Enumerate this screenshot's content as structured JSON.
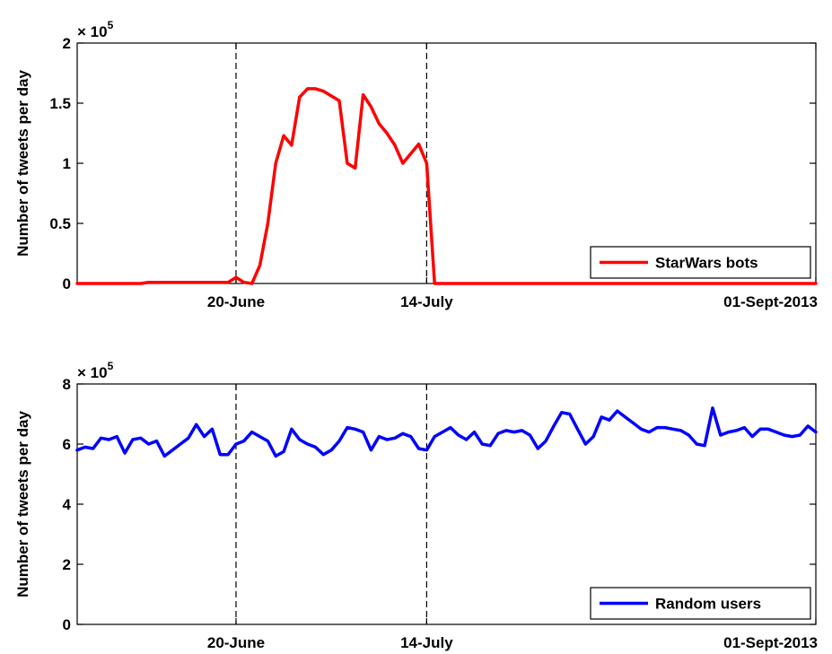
{
  "colors": {
    "series1": "#ff0000",
    "series2": "#0000ff",
    "axis": "#000000"
  },
  "chart_data": [
    {
      "type": "line",
      "ylabel": "Number of tweets per day",
      "y_exponent": {
        "base": "× 10",
        "power": "5"
      },
      "ylim": [
        0,
        200000
      ],
      "yticks": [
        {
          "value": 0,
          "label": "0"
        },
        {
          "value": 50000,
          "label": "0.5"
        },
        {
          "value": 100000,
          "label": "1"
        },
        {
          "value": 150000,
          "label": "1.5"
        },
        {
          "value": 200000,
          "label": "2"
        }
      ],
      "xlim": [
        "2013-05-31",
        "2013-09-01"
      ],
      "xticks": [
        {
          "date": "2013-06-20",
          "label": "20-June"
        },
        {
          "date": "2013-07-14",
          "label": "14-July"
        },
        {
          "date": "2013-09-01",
          "label": "01-Sept-2013"
        }
      ],
      "vlines": [
        "2013-06-20",
        "2013-07-14"
      ],
      "legend": {
        "label": "StarWars bots",
        "position": "bottom-right"
      },
      "series": [
        {
          "name": "StarWars bots",
          "color": "#ff0000",
          "points": [
            [
              "2013-05-31",
              0
            ],
            [
              "2013-06-08",
              0
            ],
            [
              "2013-06-09",
              1000
            ],
            [
              "2013-06-19",
              1000
            ],
            [
              "2013-06-20",
              5000
            ],
            [
              "2013-06-21",
              1000
            ],
            [
              "2013-06-22",
              0
            ],
            [
              "2013-06-23",
              15000
            ],
            [
              "2013-06-24",
              50000
            ],
            [
              "2013-06-25",
              100000
            ],
            [
              "2013-06-26",
              123000
            ],
            [
              "2013-06-27",
              115000
            ],
            [
              "2013-06-28",
              155000
            ],
            [
              "2013-06-29",
              162000
            ],
            [
              "2013-06-30",
              162000
            ],
            [
              "2013-07-01",
              160000
            ],
            [
              "2013-07-03",
              152000
            ],
            [
              "2013-07-04",
              100000
            ],
            [
              "2013-07-05",
              96000
            ],
            [
              "2013-07-06",
              157000
            ],
            [
              "2013-07-07",
              147000
            ],
            [
              "2013-07-08",
              133000
            ],
            [
              "2013-07-09",
              125000
            ],
            [
              "2013-07-10",
              115000
            ],
            [
              "2013-07-11",
              100000
            ],
            [
              "2013-07-12",
              108000
            ],
            [
              "2013-07-13",
              116000
            ],
            [
              "2013-07-14",
              100000
            ],
            [
              "2013-07-15",
              0
            ],
            [
              "2013-09-01",
              0
            ]
          ]
        }
      ]
    },
    {
      "type": "line",
      "ylabel": "Number of tweets per day",
      "y_exponent": {
        "base": "× 10",
        "power": "5"
      },
      "ylim": [
        0,
        800000
      ],
      "yticks": [
        {
          "value": 0,
          "label": "0"
        },
        {
          "value": 200000,
          "label": "2"
        },
        {
          "value": 400000,
          "label": "4"
        },
        {
          "value": 600000,
          "label": "6"
        },
        {
          "value": 800000,
          "label": "8"
        }
      ],
      "xlim": [
        "2013-05-31",
        "2013-09-01"
      ],
      "xticks": [
        {
          "date": "2013-06-20",
          "label": "20-June"
        },
        {
          "date": "2013-07-14",
          "label": "14-July"
        },
        {
          "date": "2013-09-01",
          "label": "01-Sept-2013"
        }
      ],
      "vlines": [
        "2013-06-20",
        "2013-07-14"
      ],
      "legend": {
        "label": "Random users",
        "position": "bottom-right"
      },
      "series": [
        {
          "name": "Random users",
          "color": "#0000ff",
          "points": [
            [
              "2013-05-31",
              580000
            ],
            [
              "2013-06-01",
              590000
            ],
            [
              "2013-06-02",
              585000
            ],
            [
              "2013-06-03",
              620000
            ],
            [
              "2013-06-04",
              615000
            ],
            [
              "2013-06-05",
              625000
            ],
            [
              "2013-06-06",
              570000
            ],
            [
              "2013-06-07",
              615000
            ],
            [
              "2013-06-08",
              620000
            ],
            [
              "2013-06-09",
              600000
            ],
            [
              "2013-06-10",
              610000
            ],
            [
              "2013-06-11",
              560000
            ],
            [
              "2013-06-12",
              580000
            ],
            [
              "2013-06-13",
              600000
            ],
            [
              "2013-06-14",
              620000
            ],
            [
              "2013-06-15",
              665000
            ],
            [
              "2013-06-16",
              625000
            ],
            [
              "2013-06-17",
              650000
            ],
            [
              "2013-06-18",
              565000
            ],
            [
              "2013-06-19",
              565000
            ],
            [
              "2013-06-20",
              600000
            ],
            [
              "2013-06-21",
              610000
            ],
            [
              "2013-06-22",
              640000
            ],
            [
              "2013-06-23",
              625000
            ],
            [
              "2013-06-24",
              610000
            ],
            [
              "2013-06-25",
              560000
            ],
            [
              "2013-06-26",
              575000
            ],
            [
              "2013-06-27",
              650000
            ],
            [
              "2013-06-28",
              615000
            ],
            [
              "2013-06-29",
              600000
            ],
            [
              "2013-06-30",
              590000
            ],
            [
              "2013-07-01",
              565000
            ],
            [
              "2013-07-02",
              580000
            ],
            [
              "2013-07-03",
              610000
            ],
            [
              "2013-07-04",
              655000
            ],
            [
              "2013-07-05",
              650000
            ],
            [
              "2013-07-06",
              640000
            ],
            [
              "2013-07-07",
              580000
            ],
            [
              "2013-07-08",
              625000
            ],
            [
              "2013-07-09",
              615000
            ],
            [
              "2013-07-10",
              620000
            ],
            [
              "2013-07-11",
              635000
            ],
            [
              "2013-07-12",
              625000
            ],
            [
              "2013-07-13",
              585000
            ],
            [
              "2013-07-14",
              580000
            ],
            [
              "2013-07-15",
              625000
            ],
            [
              "2013-07-16",
              640000
            ],
            [
              "2013-07-17",
              655000
            ],
            [
              "2013-07-18",
              630000
            ],
            [
              "2013-07-19",
              615000
            ],
            [
              "2013-07-20",
              640000
            ],
            [
              "2013-07-21",
              600000
            ],
            [
              "2013-07-22",
              595000
            ],
            [
              "2013-07-23",
              635000
            ],
            [
              "2013-07-24",
              645000
            ],
            [
              "2013-07-25",
              640000
            ],
            [
              "2013-07-26",
              645000
            ],
            [
              "2013-07-27",
              630000
            ],
            [
              "2013-07-28",
              585000
            ],
            [
              "2013-07-29",
              610000
            ],
            [
              "2013-07-30",
              660000
            ],
            [
              "2013-07-31",
              705000
            ],
            [
              "2013-08-01",
              700000
            ],
            [
              "2013-08-02",
              650000
            ],
            [
              "2013-08-03",
              600000
            ],
            [
              "2013-08-04",
              625000
            ],
            [
              "2013-08-05",
              690000
            ],
            [
              "2013-08-06",
              680000
            ],
            [
              "2013-08-07",
              710000
            ],
            [
              "2013-08-08",
              690000
            ],
            [
              "2013-08-09",
              670000
            ],
            [
              "2013-08-10",
              650000
            ],
            [
              "2013-08-11",
              640000
            ],
            [
              "2013-08-12",
              655000
            ],
            [
              "2013-08-13",
              655000
            ],
            [
              "2013-08-14",
              650000
            ],
            [
              "2013-08-15",
              645000
            ],
            [
              "2013-08-16",
              630000
            ],
            [
              "2013-08-17",
              600000
            ],
            [
              "2013-08-18",
              595000
            ],
            [
              "2013-08-19",
              720000
            ],
            [
              "2013-08-20",
              630000
            ],
            [
              "2013-08-21",
              640000
            ],
            [
              "2013-08-22",
              645000
            ],
            [
              "2013-08-23",
              655000
            ],
            [
              "2013-08-24",
              625000
            ],
            [
              "2013-08-25",
              650000
            ],
            [
              "2013-08-26",
              650000
            ],
            [
              "2013-08-27",
              640000
            ],
            [
              "2013-08-28",
              630000
            ],
            [
              "2013-08-29",
              625000
            ],
            [
              "2013-08-30",
              630000
            ],
            [
              "2013-08-31",
              660000
            ],
            [
              "2013-09-01",
              640000
            ]
          ]
        }
      ]
    }
  ]
}
